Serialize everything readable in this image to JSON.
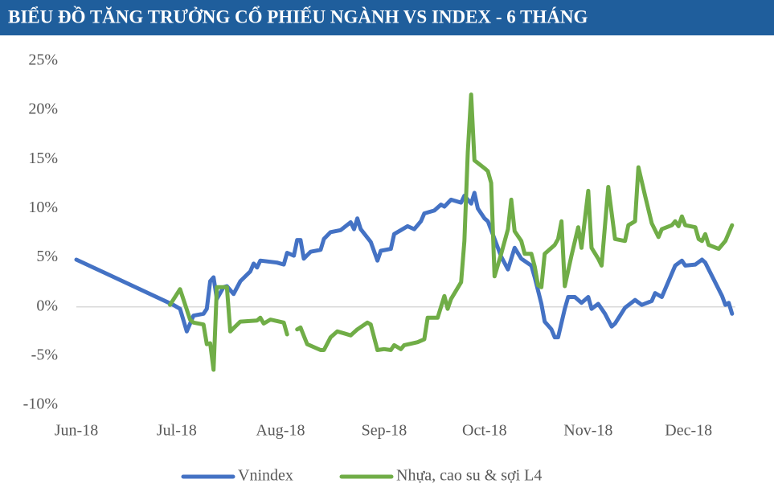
{
  "chart_data": {
    "type": "line",
    "title": "BIỂU ĐỒ TĂNG TRƯỞNG CỔ PHIẾU NGÀNH VS INDEX - 6 THÁNG",
    "xlim": [
      0,
      197
    ],
    "xticks": [
      {
        "value": 0,
        "label": "Jun-18"
      },
      {
        "value": 30,
        "label": "Jul-18"
      },
      {
        "value": 61,
        "label": "Aug-18"
      },
      {
        "value": 92,
        "label": "Sep-18"
      },
      {
        "value": 122,
        "label": "Oct-18"
      },
      {
        "value": 153,
        "label": "Nov-18"
      },
      {
        "value": 183,
        "label": "Dec-18"
      }
    ],
    "ylim": [
      -10,
      25
    ],
    "yticks": [
      {
        "value": -10,
        "label": "-10%"
      },
      {
        "value": -5,
        "label": "-5%"
      },
      {
        "value": 0,
        "label": "0%"
      },
      {
        "value": 5,
        "label": "5%"
      },
      {
        "value": 10,
        "label": "10%"
      },
      {
        "value": 15,
        "label": "15%"
      },
      {
        "value": 20,
        "label": "20%"
      },
      {
        "value": 25,
        "label": "25%"
      }
    ],
    "grid": false,
    "legend": "bottom",
    "series": [
      {
        "name": "Vnindex",
        "color": "#4472c4",
        "x": [
          0,
          29,
          31,
          33,
          35,
          38,
          39,
          40,
          41,
          42,
          44,
          45,
          47,
          49,
          52,
          53,
          54,
          55,
          60,
          62,
          63,
          65,
          66,
          67,
          68,
          70,
          73,
          74,
          76,
          79,
          82,
          83,
          84,
          85,
          88,
          90,
          91,
          94,
          95,
          97,
          99,
          101,
          103,
          104,
          107,
          109,
          110,
          112,
          115,
          116,
          118,
          119,
          120,
          122,
          123,
          125,
          127,
          129,
          131,
          133,
          136,
          137,
          139,
          140,
          142,
          143,
          144,
          146,
          147,
          149,
          151,
          153,
          154,
          156,
          158,
          160,
          161,
          164,
          167,
          169,
          172,
          173,
          175,
          179,
          181,
          182,
          185,
          187,
          188,
          193,
          194,
          195,
          196
        ],
        "values": [
          4.8,
          0.2,
          -0.2,
          -2.5,
          -0.9,
          -0.7,
          -0.2,
          2.6,
          3.0,
          0.8,
          2.0,
          2.1,
          1.3,
          2.6,
          3.6,
          4.4,
          4.0,
          4.7,
          4.5,
          4.3,
          5.5,
          5.2,
          6.8,
          6.8,
          4.9,
          5.6,
          5.8,
          6.9,
          7.6,
          7.8,
          8.6,
          7.9,
          9.0,
          7.9,
          6.6,
          4.7,
          5.7,
          5.9,
          7.4,
          7.8,
          8.2,
          7.9,
          8.7,
          9.5,
          9.8,
          10.4,
          10.2,
          10.9,
          10.6,
          11.3,
          10.5,
          11.6,
          10.0,
          9.0,
          8.7,
          6.9,
          5.1,
          3.8,
          6.0,
          4.9,
          4.2,
          3.0,
          0.3,
          -1.5,
          -2.3,
          -3.1,
          -3.1,
          -0.2,
          1.0,
          1.0,
          0.4,
          1.0,
          -0.2,
          0.3,
          -0.7,
          -2.0,
          -1.7,
          -0.1,
          0.7,
          0.2,
          0.6,
          1.4,
          1.0,
          4.2,
          4.7,
          4.2,
          4.3,
          4.8,
          4.5,
          1.1,
          0.2,
          0.4,
          -0.7
        ]
      },
      {
        "name": "Nhựa, cao su & sợi L4",
        "color": "#70ad47",
        "x": [
          28,
          31,
          34,
          35,
          38,
          39,
          40,
          41,
          42,
          44,
          45,
          46,
          49,
          54,
          55,
          56,
          58,
          62,
          63,
          65,
          66,
          67,
          69,
          73,
          74,
          76,
          78,
          80,
          82,
          84,
          87,
          88,
          90,
          92,
          94,
          95,
          97,
          98,
          102,
          104,
          105,
          108,
          110,
          111,
          112,
          115,
          116,
          117,
          118,
          119,
          122,
          123,
          124,
          125,
          127,
          129,
          130,
          131,
          133,
          134,
          136,
          137,
          138,
          139,
          140,
          143,
          144,
          145,
          146,
          148,
          150,
          151,
          153,
          154,
          156,
          157,
          159,
          161,
          164,
          165,
          167,
          168,
          170,
          172,
          174,
          175,
          178,
          179,
          180,
          181,
          182,
          185,
          186,
          187,
          188,
          189,
          192,
          194,
          196
        ],
        "values": [
          0.2,
          1.8,
          -1.3,
          -1.6,
          -1.8,
          -3.8,
          -3.7,
          -6.4,
          2.0,
          2.0,
          2.0,
          -2.5,
          -1.5,
          -1.4,
          -1.1,
          -1.7,
          -1.3,
          -1.6,
          -2.8,
          null,
          -2.3,
          -2.1,
          -3.8,
          -4.4,
          -4.4,
          -3.1,
          -2.5,
          -2.7,
          -2.9,
          -2.3,
          -1.6,
          -1.8,
          -4.4,
          -4.3,
          -4.4,
          -3.9,
          -4.3,
          -3.9,
          -3.6,
          -3.3,
          -1.1,
          -1.1,
          1.1,
          -0.2,
          0.8,
          2.5,
          6.7,
          15.7,
          21.6,
          14.9,
          14.1,
          13.8,
          12.6,
          3.1,
          5.4,
          7.9,
          10.9,
          7.7,
          6.7,
          5.4,
          5.4,
          4.1,
          2.2,
          2.0,
          5.4,
          6.3,
          6.9,
          8.7,
          2.1,
          5.2,
          8.1,
          6.0,
          11.8,
          6.0,
          4.9,
          4.2,
          12.2,
          6.9,
          6.7,
          8.3,
          8.7,
          14.2,
          11.3,
          8.5,
          7.1,
          7.9,
          8.3,
          8.7,
          8.2,
          9.2,
          8.3,
          8.1,
          6.9,
          6.7,
          7.4,
          6.3,
          5.9,
          6.7,
          8.3
        ]
      }
    ]
  }
}
